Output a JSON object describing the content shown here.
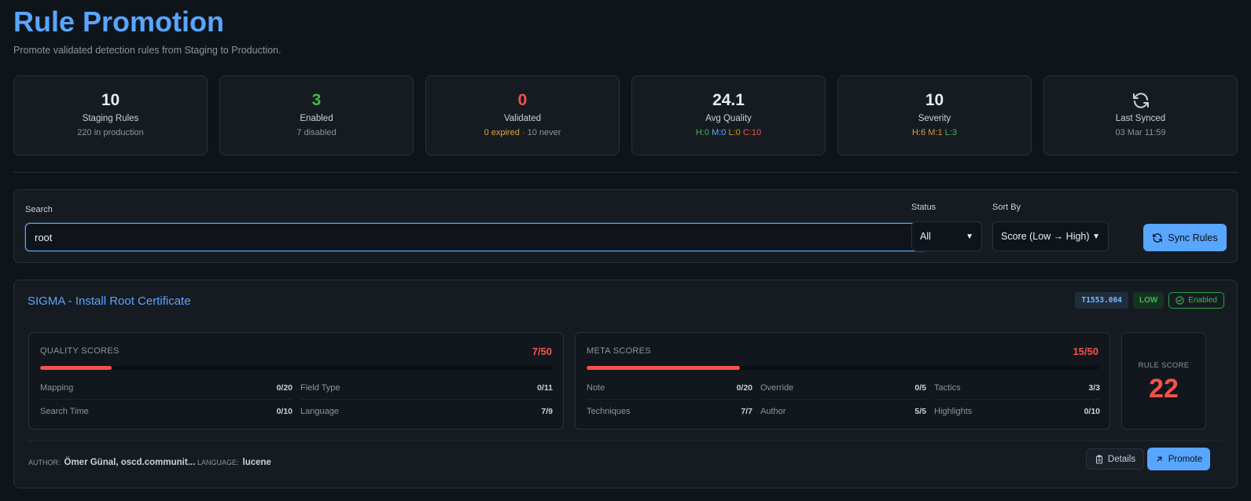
{
  "header": {
    "title": "Rule Promotion",
    "subtitle": "Promote validated detection rules from Staging to Production."
  },
  "stats": {
    "staging": {
      "value": "10",
      "label": "Staging Rules",
      "sub": "220 in production"
    },
    "enabled": {
      "value": "3",
      "label": "Enabled",
      "sub": "7 disabled"
    },
    "validated": {
      "value": "0",
      "label": "Validated",
      "sub_expired": "0 expired",
      "sub_sep": " · ",
      "sub_never": "10 never"
    },
    "quality": {
      "value": "24.1",
      "label": "Avg Quality",
      "h": "H:0",
      "m": "M:0",
      "l": "L:0",
      "c": "C:10"
    },
    "severity": {
      "value": "10",
      "label": "Severity",
      "h": "H:6",
      "m": "M:1",
      "l": "L:3"
    },
    "synced": {
      "icon": "refresh-icon",
      "label": "Last Synced",
      "sub": "03 Mar 11:59"
    }
  },
  "filters": {
    "search_label": "Search",
    "search_value": "root",
    "status_label": "Status",
    "status_value": "All",
    "sort_label": "Sort By",
    "sort_value": "Score (Low → High)",
    "sync_button": "Sync Rules"
  },
  "rule": {
    "title": "SIGMA - Install Root Certificate",
    "technique": "T1553.004",
    "severity": "LOW",
    "status": "Enabled",
    "quality": {
      "title": "QUALITY SCORES",
      "total": "7/50",
      "fraction": 0.14,
      "metrics": [
        {
          "label": "Mapping",
          "value": "0/20"
        },
        {
          "label": "Field Type",
          "value": "0/11"
        },
        {
          "label": "Search Time",
          "value": "0/10"
        },
        {
          "label": "Language",
          "value": "7/9"
        }
      ]
    },
    "meta": {
      "title": "META SCORES",
      "total": "15/50",
      "fraction": 0.3,
      "metrics": [
        {
          "label": "Note",
          "value": "0/20"
        },
        {
          "label": "Override",
          "value": "0/5"
        },
        {
          "label": "Tactics",
          "value": "3/3"
        },
        {
          "label": "Techniques",
          "value": "7/7"
        },
        {
          "label": "Author",
          "value": "5/5"
        },
        {
          "label": "Highlights",
          "value": "0/10"
        }
      ]
    },
    "rule_score": {
      "label": "RULE SCORE",
      "value": "22"
    },
    "author_label": "AUTHOR:",
    "author": "Ömer Günal, oscd.communit...",
    "language_label": "LANGUAGE:",
    "language": "lucene",
    "details_button": "Details",
    "promote_button": "Promote"
  },
  "colors": {
    "accent": "#58a6ff",
    "success": "#3fb950",
    "danger": "#f85149",
    "warning": "#e3a23b",
    "background": "#0f141b",
    "panel": "#161b22"
  }
}
